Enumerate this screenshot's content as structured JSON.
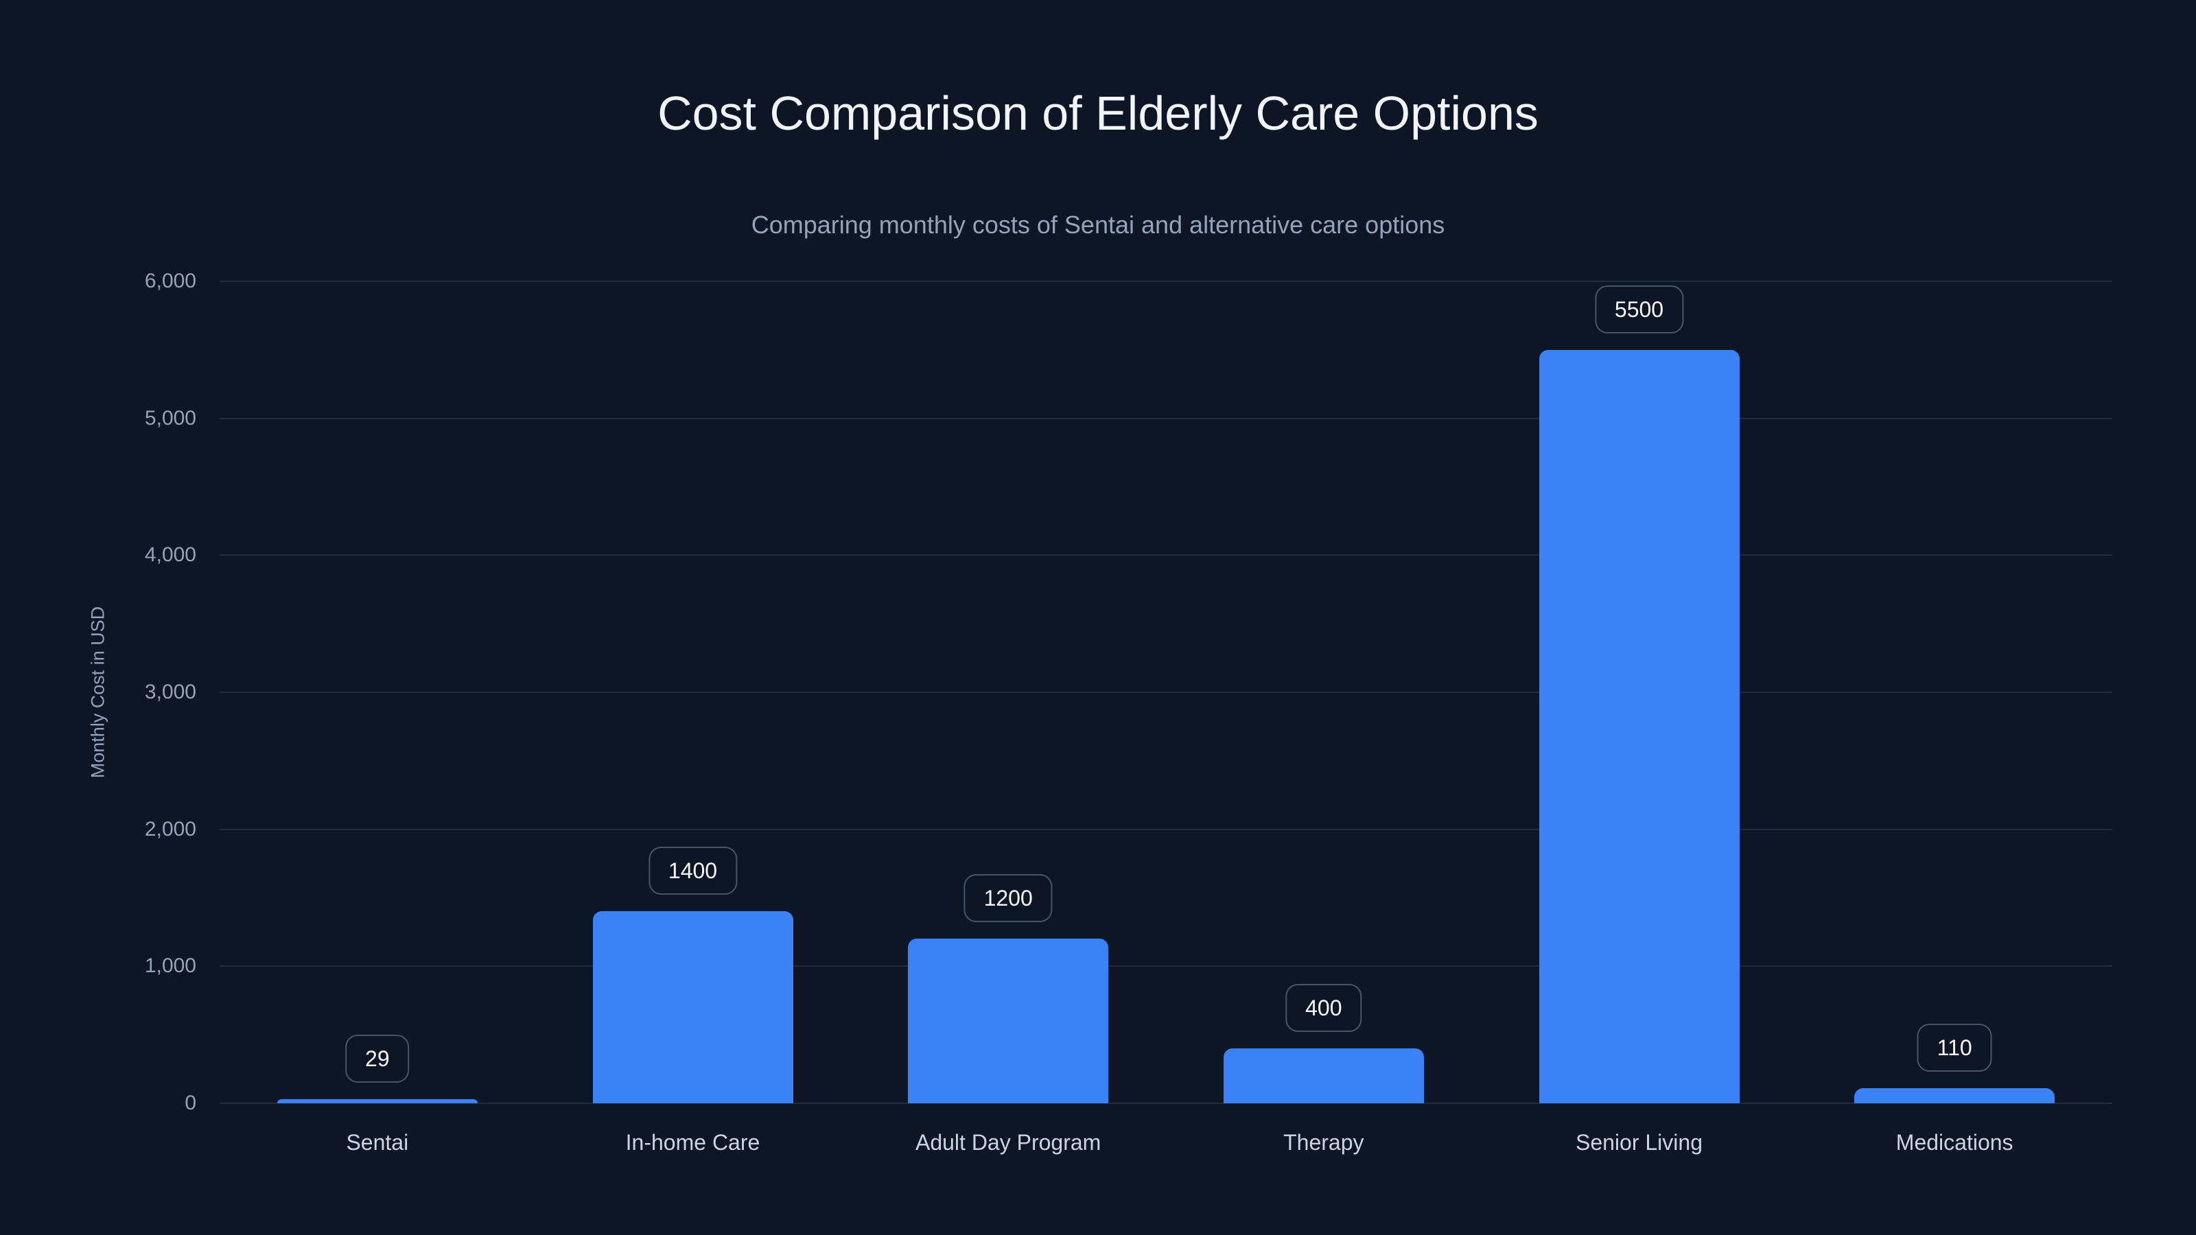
{
  "title": "Cost Comparison of Elderly Care Options",
  "subtitle": "Comparing monthly costs of Sentai and alternative care options",
  "chart_data": {
    "type": "bar",
    "categories": [
      "Sentai",
      "In-home Care",
      "Adult Day Program",
      "Therapy",
      "Senior Living",
      "Medications"
    ],
    "values": [
      29,
      1400,
      1200,
      400,
      5500,
      110
    ],
    "value_labels": [
      "29",
      "1400",
      "1200",
      "400",
      "5500",
      "110"
    ],
    "title": "Cost Comparison of Elderly Care Options",
    "xlabel": "",
    "ylabel": "Monthly Cost in USD",
    "ylim": [
      0,
      6000
    ],
    "yticks": [
      0,
      1000,
      2000,
      3000,
      4000,
      5000,
      6000
    ],
    "ytick_labels": [
      "0",
      "1,000",
      "2,000",
      "3,000",
      "4,000",
      "5,000",
      "6,000"
    ],
    "grid": true,
    "legend": false,
    "colors": {
      "bar": "#3b82f6",
      "background": "#0e1626",
      "grid_rgba": "rgba(148,163,184,0.16)",
      "tick_label": "#94a3b8",
      "category_label": "#cbd5e1",
      "value_label_text": "#f8fafc",
      "value_label_border": "#475569",
      "title": "#f1f5f9",
      "subtitle": "#94a3b8"
    }
  }
}
